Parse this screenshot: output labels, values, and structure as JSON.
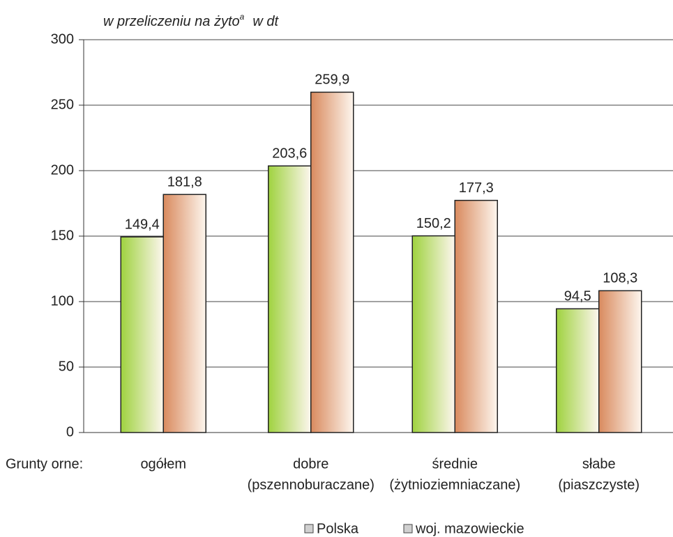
{
  "chart_data": {
    "type": "bar",
    "y_label": {
      "text": "w przeliczeniu na żyto",
      "superscript": "a",
      "unit": "w dt"
    },
    "x_label": "Grunty orne:",
    "categories": [
      [
        "ogółem"
      ],
      [
        "dobre",
        "(pszennoburaczane)"
      ],
      [
        "średnie",
        "(żytnioziemniaczane)"
      ],
      [
        "słabe",
        "(piaszczyste)"
      ]
    ],
    "series": [
      {
        "name": "Polska",
        "color": "#9fd23f",
        "values": [
          149.4,
          203.6,
          150.2,
          94.5
        ],
        "value_labels": [
          "149,4",
          "203,6",
          "150,2",
          "94,5"
        ]
      },
      {
        "name": "woj. mazowieckie",
        "color": "#d98a5e",
        "values": [
          181.8,
          259.9,
          177.3,
          108.3
        ],
        "value_labels": [
          "181,8",
          "259,9",
          "177,3",
          "108,3"
        ]
      }
    ],
    "ylim": [
      0,
      300
    ],
    "yticks": [
      0,
      50,
      100,
      150,
      200,
      250,
      300
    ],
    "grid": true,
    "legend": "bottom"
  }
}
